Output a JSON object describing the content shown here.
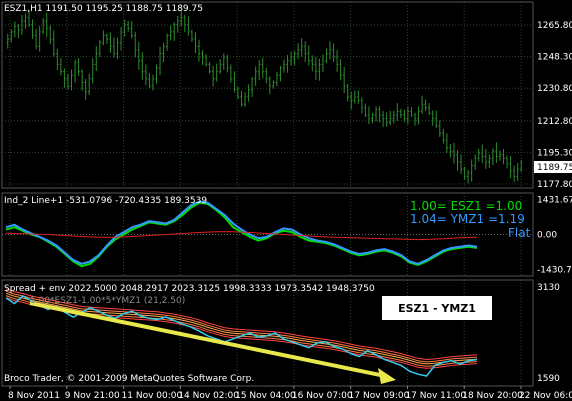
{
  "colors": {
    "background": "#000000",
    "grid": "#2a4a2a",
    "candles": "#2e8b2e",
    "green_line": "#00dd00",
    "blue_line": "#3399ff",
    "red_line": "#dd2222",
    "cyan_line": "#33ccee",
    "orange_band": "#ff7f3f",
    "arrow": "#e8e84a",
    "price_tag_bg": "#ffffff",
    "price_tag_text": "#000000"
  },
  "panel1": {
    "header": "ESZ1,H1  1191.50 1195.25 1188.75 1189.75",
    "y_ticks": [
      "1265.80",
      "1248.30",
      "1230.80",
      "1212.80",
      "1195.30",
      "1177.80"
    ],
    "price_tag": "1189.75",
    "chart_data": {
      "type": "candlestick",
      "symbol": "ESZ1",
      "timeframe": "H1",
      "ohlc_last": {
        "open": 1191.5,
        "high": 1195.25,
        "low": 1188.75,
        "close": 1189.75
      },
      "ylim": [
        1177.8,
        1273
      ],
      "closes": [
        1258,
        1262,
        1265,
        1263,
        1268,
        1270,
        1266,
        1260,
        1254,
        1262,
        1268,
        1264,
        1258,
        1250,
        1244,
        1240,
        1236,
        1232,
        1238,
        1245,
        1240,
        1234,
        1229,
        1236,
        1244,
        1250,
        1256,
        1260,
        1258,
        1254,
        1250,
        1256,
        1262,
        1266,
        1264,
        1260,
        1252,
        1246,
        1240,
        1236,
        1232,
        1236,
        1242,
        1250,
        1254,
        1260,
        1262,
        1266,
        1268,
        1270,
        1266,
        1262,
        1258,
        1254,
        1250,
        1248,
        1244,
        1240,
        1236,
        1240,
        1244,
        1248,
        1242,
        1236,
        1230,
        1226,
        1222,
        1226,
        1230,
        1236,
        1240,
        1244,
        1240,
        1236,
        1232,
        1234,
        1238,
        1242,
        1244,
        1246,
        1248,
        1250,
        1252,
        1254,
        1250,
        1246,
        1244,
        1240,
        1244,
        1246,
        1250,
        1252,
        1248,
        1244,
        1238,
        1232,
        1226,
        1224,
        1226,
        1224,
        1220,
        1216,
        1214,
        1216,
        1219,
        1216,
        1214,
        1212,
        1214,
        1216,
        1218,
        1216,
        1214,
        1218,
        1216,
        1214,
        1218,
        1222,
        1220,
        1217,
        1214,
        1210,
        1206,
        1202,
        1198,
        1196,
        1194,
        1190,
        1186,
        1182,
        1184,
        1188,
        1192,
        1195,
        1193,
        1190,
        1192,
        1196,
        1193,
        1194,
        1192,
        1189,
        1185,
        1182,
        1186,
        1189.75
      ]
    }
  },
  "panel2": {
    "header": "Ind_2 Line+1 -531.0796 -720.4335 189.3539",
    "y_ticks": [
      "1431.67",
      "0.00",
      "-1430.71"
    ],
    "legend": [
      {
        "text": "1.00= ESZ1 =1.00",
        "color": "#00dd00"
      },
      {
        "text": "1.04= YMZ1 =1.19",
        "color": "#3399ff"
      },
      {
        "text": "Flat",
        "color": "#3399ff"
      }
    ],
    "chart_data": {
      "type": "line",
      "ylim": [
        -1700,
        1700
      ],
      "series": [
        {
          "name": "ESZ1",
          "color": "#00dd00",
          "values": [
            200,
            300,
            150,
            0,
            -100,
            -300,
            -500,
            -800,
            -1100,
            -1300,
            -1200,
            -900,
            -500,
            -200,
            0,
            200,
            350,
            500,
            450,
            400,
            550,
            800,
            1100,
            1300,
            1250,
            1000,
            700,
            300,
            100,
            -100,
            -250,
            -150,
            50,
            150,
            100,
            -100,
            -250,
            -300,
            -350,
            -450,
            -600,
            -750,
            -850,
            -800,
            -700,
            -650,
            -750,
            -900,
            -1150,
            -1250,
            -1100,
            -900,
            -700,
            -600,
            -550,
            -500,
            -550
          ]
        },
        {
          "name": "YMZ1",
          "color": "#3399ff",
          "values": [
            300,
            400,
            200,
            50,
            -100,
            -250,
            -450,
            -750,
            -1050,
            -1200,
            -1100,
            -850,
            -450,
            -100,
            100,
            300,
            400,
            550,
            500,
            450,
            600,
            900,
            1200,
            1350,
            1300,
            1050,
            800,
            450,
            200,
            0,
            -150,
            -100,
            100,
            250,
            200,
            0,
            -150,
            -250,
            -300,
            -400,
            -550,
            -700,
            -800,
            -750,
            -650,
            -600,
            -700,
            -850,
            -1100,
            -1200,
            -1050,
            -850,
            -650,
            -550,
            -500,
            -450,
            -500
          ]
        },
        {
          "name": "",
          "color": "#dd2222",
          "values": [
            50,
            40,
            30,
            20,
            10,
            0,
            -20,
            -40,
            -60,
            -80,
            -100,
            -110,
            -120,
            -110,
            -100,
            -80,
            -60,
            -40,
            -20,
            0,
            20,
            40,
            60,
            80,
            100,
            110,
            120,
            110,
            100,
            80,
            60,
            40,
            20,
            0,
            -20,
            -40,
            -60,
            -80,
            -100,
            -110,
            -120,
            -130,
            -140,
            -150,
            -160,
            -170,
            -180,
            -190,
            -200,
            -210,
            -200,
            -190,
            -170,
            -150,
            -130,
            -120,
            -110
          ]
        }
      ]
    }
  },
  "panel3": {
    "header": "Spread + env 2022.5000 2048.2917 2023.3125 1998.3333 1973.3542 1948.3750",
    "subheader": "1.00*ESZ1-1.00*5*YMZ1 (21,2.50)",
    "y_ticks": [
      "3130",
      "1590"
    ],
    "box_label": "ESZ1 - YMZ1",
    "footer": "Broco Trader, © 2001-2009 MetaQuotes Software Corp.",
    "chart_data": {
      "type": "line",
      "ylim": [
        1450,
        3250
      ],
      "series": [
        {
          "name": "",
          "color": "#33ccee",
          "values": [
            2950,
            2850,
            2980,
            2900,
            2820,
            2750,
            2800,
            2700,
            2620,
            2700,
            2780,
            2720,
            2650,
            2600,
            2680,
            2720,
            2640,
            2600,
            2580,
            2620,
            2560,
            2500,
            2450,
            2380,
            2300,
            2250,
            2200,
            2250,
            2300,
            2350,
            2280,
            2300,
            2350,
            2250,
            2200,
            2150,
            2100,
            2180,
            2200,
            2120,
            2080,
            2000,
            1950,
            2050,
            1980,
            1900,
            1850,
            1800,
            1700,
            1650,
            1620,
            1800,
            1850,
            1880,
            1820,
            1880,
            1900
          ]
        },
        {
          "name": "",
          "color": "#ff7f3f",
          "values": [
            3000,
            2950,
            2920,
            2880,
            2850,
            2820,
            2790,
            2760,
            2730,
            2700,
            2690,
            2680,
            2670,
            2660,
            2650,
            2640,
            2630,
            2620,
            2610,
            2590,
            2570,
            2540,
            2510,
            2470,
            2420,
            2380,
            2340,
            2320,
            2310,
            2300,
            2290,
            2280,
            2270,
            2250,
            2230,
            2200,
            2180,
            2160,
            2140,
            2120,
            2090,
            2060,
            2030,
            2010,
            1990,
            1960,
            1930,
            1900,
            1860,
            1820,
            1800,
            1810,
            1830,
            1850,
            1860,
            1870,
            1880
          ]
        }
      ]
    }
  },
  "x_axis": {
    "labels": [
      "8 Nov 2011",
      "9 Nov 21:00",
      "11 Nov 00:00",
      "14 Nov 02:00",
      "15 Nov 04:00",
      "16 Nov 07:00",
      "17 Nov 09:00",
      "17 Nov 11:00",
      "18 Nov 20:00",
      "22 Nov 06:00"
    ]
  }
}
